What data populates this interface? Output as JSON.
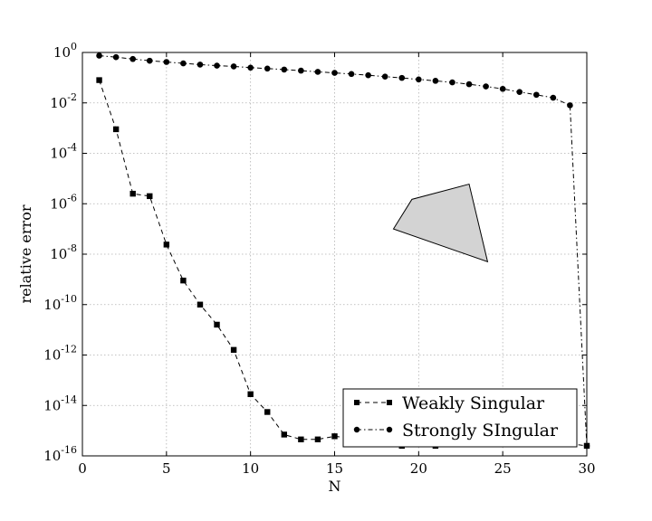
{
  "chart_data": {
    "type": "line",
    "xlabel": "N",
    "ylabel": "relative error",
    "xlim": [
      0,
      30
    ],
    "ylim_exponent": [
      -16,
      0
    ],
    "yscale": "log",
    "grid": true,
    "legend_placement": "lower-right",
    "x_ticks": [
      0,
      5,
      10,
      15,
      20,
      25,
      30
    ],
    "y_tick_exponents": [
      0,
      -2,
      -4,
      -6,
      -8,
      -10,
      -12,
      -14,
      -16
    ],
    "series": [
      {
        "name": "Weakly Singular",
        "marker": "square",
        "linestyle": "dashed",
        "color": "#000000",
        "x": [
          1,
          2,
          3,
          4,
          5,
          6,
          7,
          8,
          9,
          10,
          11,
          12,
          13,
          14,
          15,
          16,
          17,
          18,
          19,
          20,
          21,
          22,
          23,
          24,
          25,
          26,
          27,
          28,
          29,
          30
        ],
        "y": [
          0.08,
          0.0009,
          2.5e-06,
          2e-06,
          2.4e-08,
          9e-10,
          1e-10,
          1.6e-11,
          1.6e-12,
          2.8e-14,
          5.5e-15,
          7e-16,
          4.5e-16,
          4.5e-16,
          6e-16,
          5e-16,
          4e-16,
          3.5e-16,
          2.5e-16,
          3e-16,
          2.5e-16,
          3e-16,
          3e-16,
          3e-16,
          3e-16,
          3e-16,
          3e-16,
          3e-16,
          3e-16,
          2.5e-16
        ]
      },
      {
        "name": "Strongly SIngular",
        "marker": "circle",
        "linestyle": "dashdot",
        "color": "#000000",
        "x": [
          1,
          2,
          3,
          4,
          5,
          6,
          7,
          8,
          9,
          10,
          11,
          12,
          13,
          14,
          15,
          16,
          17,
          18,
          19,
          20,
          21,
          22,
          23,
          24,
          25,
          26,
          27,
          28,
          29,
          30
        ],
        "y": [
          0.75,
          0.65,
          0.55,
          0.47,
          0.42,
          0.37,
          0.33,
          0.3,
          0.28,
          0.25,
          0.23,
          0.21,
          0.19,
          0.17,
          0.155,
          0.14,
          0.125,
          0.11,
          0.098,
          0.085,
          0.075,
          0.065,
          0.055,
          0.045,
          0.036,
          0.027,
          0.021,
          0.016,
          0.008,
          2.5e-16
        ]
      }
    ],
    "annotation_polygon": {
      "fill": "#d3d3d3",
      "stroke": "#000000",
      "points": [
        [
          18.5,
          1e-07
        ],
        [
          19.6,
          1.5e-06
        ],
        [
          23.0,
          6e-06
        ],
        [
          24.1,
          5e-09
        ]
      ]
    }
  }
}
